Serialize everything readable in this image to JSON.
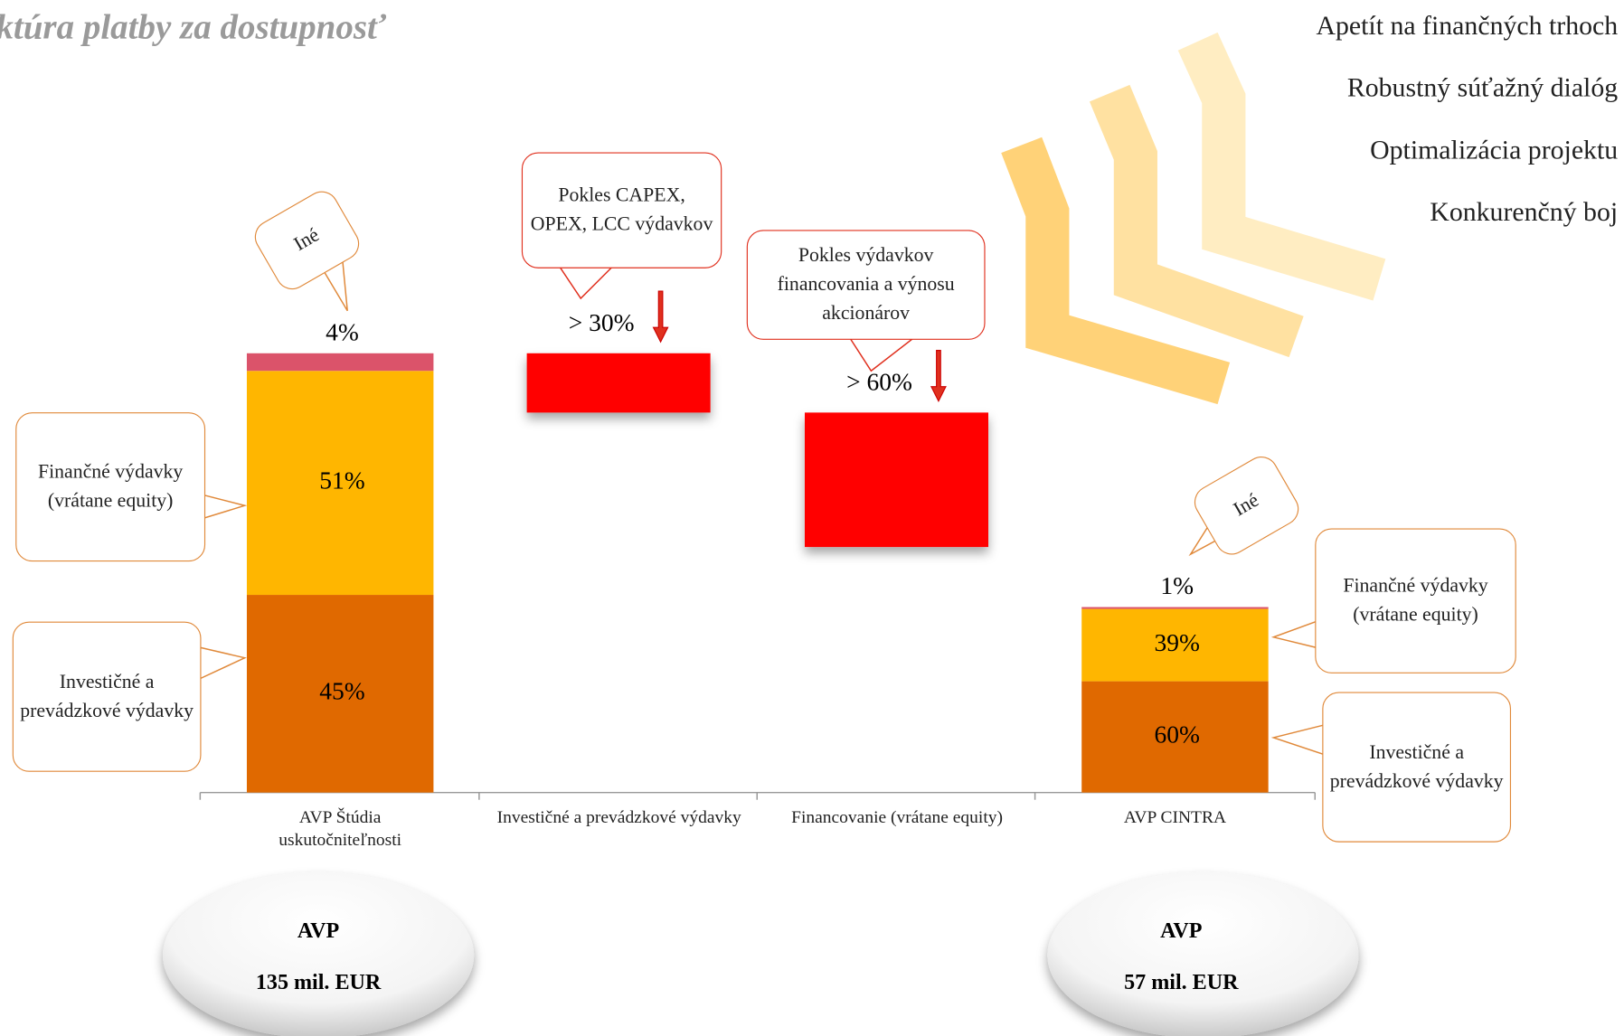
{
  "chart_data": {
    "type": "waterfall",
    "subtitle": "ktúra platby za dostupnosť",
    "categories": [
      "AVP Štúdia uskutočniteľnosti",
      "Investičné a prevádzkové výdavky",
      "Financovanie (vrátane equity)",
      "AVP CINTRA"
    ],
    "series": [
      {
        "name": "Investičné a prevádzkové výdavky",
        "color": "#e06900",
        "values": [
          45,
          null,
          null,
          60
        ],
        "value_labels": [
          "45%",
          null,
          null,
          "60%"
        ]
      },
      {
        "name": "Finančné výdavky (vrátane equity)",
        "color": "#ffb600",
        "values": [
          51,
          null,
          null,
          39
        ],
        "value_labels": [
          "51%",
          null,
          null,
          "39%"
        ]
      },
      {
        "name": "Iné",
        "color": "#db536a",
        "values": [
          4,
          null,
          null,
          1
        ],
        "value_labels": [
          "4%",
          null,
          null,
          "1%"
        ]
      }
    ],
    "reductions": {
      "color": "#ff0000",
      "values": [
        null,
        30,
        60,
        null
      ],
      "value_labels": [
        null,
        "> 30%",
        "> 60%",
        null
      ]
    },
    "annotations": [
      "Pokles CAPEX, OPEX, LCC výdavkov",
      "Pokles výdavkov financovania a výnosu akcionárov"
    ],
    "totals": {
      "label": "AVP",
      "values": [
        135,
        null,
        null,
        57
      ],
      "value_labels": [
        "135 mil. EUR",
        null,
        null,
        "57 mil. EUR"
      ]
    }
  },
  "side_list": [
    "Apetít na finančných trhoch",
    "Robustný súťažný dialóg",
    "Optimalizácia projektu",
    "Konkurenčný boj"
  ]
}
